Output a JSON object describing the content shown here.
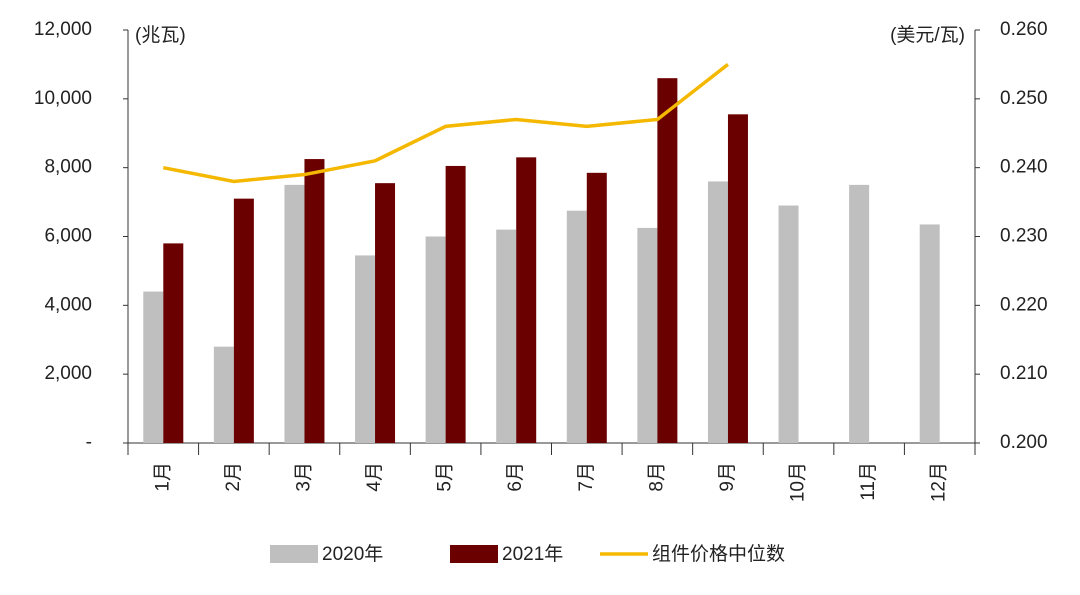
{
  "chart_data": {
    "type": "bar",
    "categories": [
      "1月",
      "2月",
      "3月",
      "4月",
      "5月",
      "6月",
      "7月",
      "8月",
      "9月",
      "10月",
      "11月",
      "12月"
    ],
    "y_label": "(兆瓦)",
    "y2_label": "(美元/瓦)",
    "ylim": [
      0,
      12000
    ],
    "yticks": [
      {
        "value": 0,
        "label": "-"
      },
      {
        "value": 2000,
        "label": "2,000"
      },
      {
        "value": 4000,
        "label": "4,000"
      },
      {
        "value": 6000,
        "label": "6,000"
      },
      {
        "value": 8000,
        "label": "8,000"
      },
      {
        "value": 10000,
        "label": "10,000"
      },
      {
        "value": 12000,
        "label": "12,000"
      }
    ],
    "y2lim": [
      0.2,
      0.26
    ],
    "y2ticks": [
      {
        "value": 0.2,
        "label": "0.200"
      },
      {
        "value": 0.21,
        "label": "0.210"
      },
      {
        "value": 0.22,
        "label": "0.220"
      },
      {
        "value": 0.23,
        "label": "0.230"
      },
      {
        "value": 0.24,
        "label": "0.240"
      },
      {
        "value": 0.25,
        "label": "0.250"
      },
      {
        "value": 0.26,
        "label": "0.260"
      }
    ],
    "series": [
      {
        "name": "2020年",
        "type": "bar",
        "color": "#bfbfbf",
        "values": [
          4400,
          2800,
          7500,
          5450,
          6000,
          6200,
          6750,
          6250,
          7600,
          6900,
          7500,
          6350
        ]
      },
      {
        "name": "2021年",
        "type": "bar",
        "color": "#6b0000",
        "values": [
          5800,
          7100,
          8250,
          7550,
          8050,
          8300,
          7850,
          10600,
          9550,
          null,
          null,
          null
        ]
      },
      {
        "name": "组件价格中位数",
        "type": "line",
        "axis": "y2",
        "color": "#f5b800",
        "values": [
          0.24,
          0.238,
          0.239,
          0.241,
          0.246,
          0.247,
          0.246,
          0.247,
          0.255,
          null,
          null,
          null
        ]
      }
    ]
  }
}
